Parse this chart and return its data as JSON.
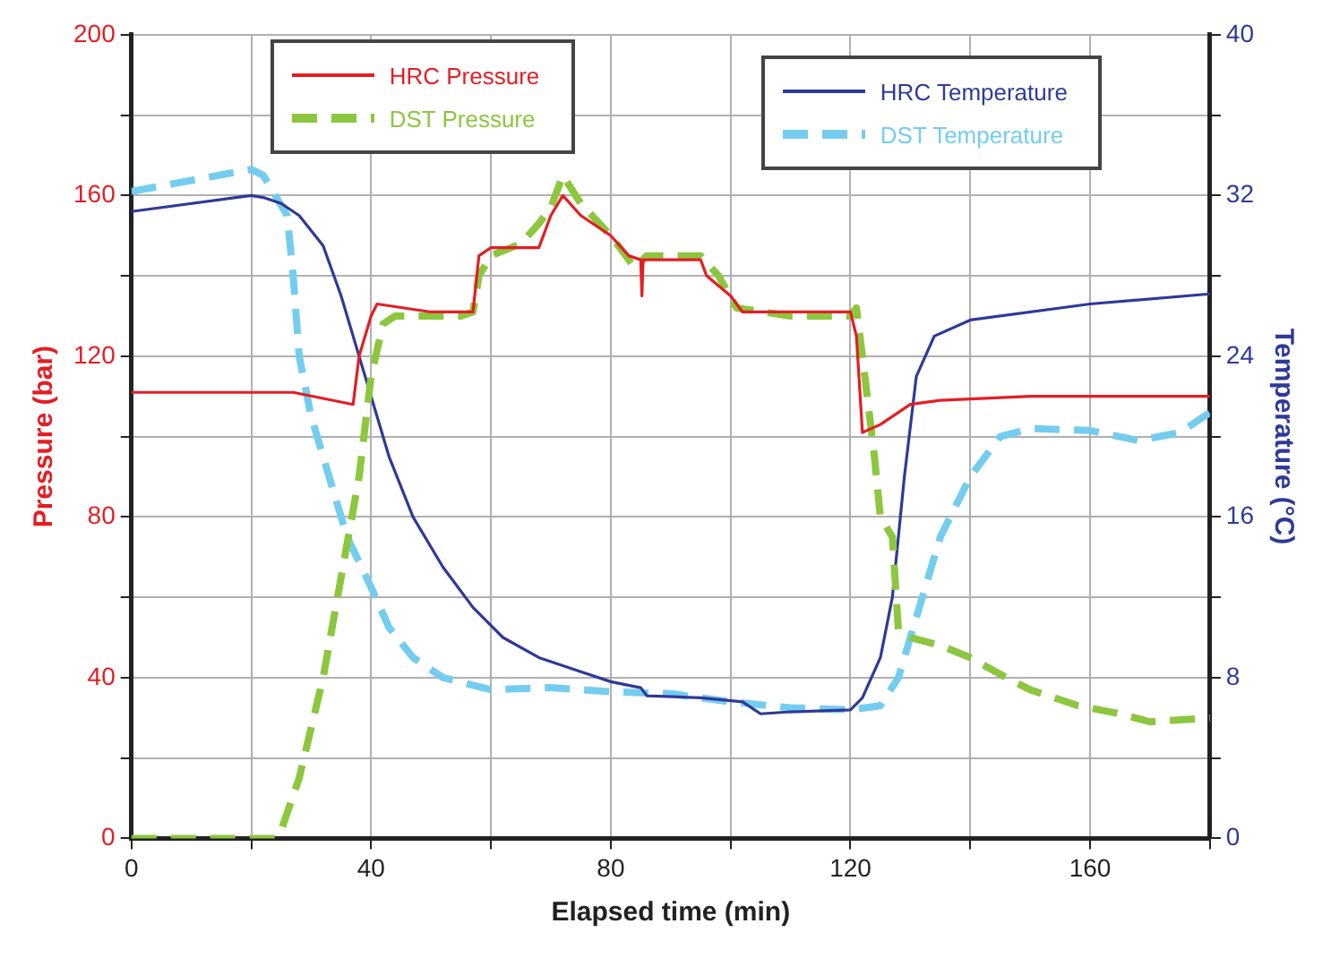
{
  "chart_data": {
    "type": "line",
    "xlabel": "Elapsed time (min)",
    "ylabel": "Pressure (bar)",
    "y2label": "Temperature (°C)",
    "xlim": [
      0,
      180
    ],
    "xticks": [
      0,
      {
        "value": 20,
        "label": null
      },
      40,
      {
        "value": 60,
        "label": null
      },
      80,
      {
        "value": 100,
        "label": null
      },
      120,
      {
        "value": 140,
        "label": null
      },
      160,
      {
        "value": 180,
        "label": null
      }
    ],
    "ylim": [
      0,
      200
    ],
    "yticks": [
      0,
      {
        "value": 20,
        "label": null
      },
      40,
      {
        "value": 60,
        "label": null
      },
      80,
      {
        "value": 100,
        "label": null
      },
      120,
      {
        "value": 140,
        "label": null
      },
      160,
      {
        "value": 180,
        "label": null
      },
      200
    ],
    "y2lim": [
      0,
      40
    ],
    "y2ticks": [
      0,
      {
        "value": 4,
        "label": null
      },
      8,
      {
        "value": 12,
        "label": null
      },
      16,
      {
        "value": 20,
        "label": null
      },
      24,
      {
        "value": 28,
        "label": null
      },
      32,
      {
        "value": 36,
        "label": null
      },
      40
    ],
    "grid": true,
    "legend": "top",
    "marker": "none",
    "series": [
      {
        "name": "HRC Pressure",
        "color": "#e31e24",
        "line_style": "solid",
        "x": [
          0,
          27,
          37,
          38,
          40,
          41,
          50,
          57,
          58,
          60,
          68,
          70,
          72,
          75,
          80,
          83,
          85,
          85.2,
          85.4,
          95,
          96,
          100,
          102,
          110,
          120,
          121,
          122,
          125,
          128,
          130,
          135,
          150,
          180
        ],
        "values": [
          111,
          111,
          108,
          120,
          130,
          133,
          131,
          131,
          145,
          147,
          147,
          155,
          160,
          155,
          150,
          145,
          144,
          135,
          144,
          144,
          140,
          135,
          131,
          131,
          131,
          125,
          101,
          103,
          106,
          108,
          109,
          110,
          110
        ]
      },
      {
        "name": "DST Pressure",
        "color": "#8dc63f",
        "line_style": "dashed",
        "x": [
          0,
          24,
          25,
          28,
          32,
          35,
          38,
          40,
          42,
          44,
          55,
          57,
          58,
          60,
          65,
          68,
          70,
          72,
          75,
          80,
          84,
          86,
          95,
          98,
          101,
          110,
          120,
          121,
          122,
          124,
          125,
          127,
          128,
          130,
          135,
          140,
          146,
          150,
          158,
          165,
          170,
          180
        ],
        "values": [
          0,
          0,
          2,
          15,
          40,
          65,
          90,
          115,
          128,
          130,
          130,
          131,
          140,
          145,
          148,
          153,
          157,
          165,
          158,
          150,
          142,
          145,
          145,
          140,
          132,
          130,
          130,
          132,
          120,
          95,
          80,
          75,
          52,
          50,
          48,
          45,
          40,
          37,
          33,
          31,
          29,
          30
        ]
      },
      {
        "name": "HRC Temperature",
        "color": "#2e3a97",
        "line_style": "solid",
        "axis": "y2",
        "x": [
          0,
          20,
          22,
          25,
          28,
          32,
          35,
          38,
          40,
          43,
          47,
          52,
          57,
          62,
          68,
          75,
          80,
          85,
          86,
          95,
          102,
          105,
          110,
          120,
          122,
          125,
          127,
          129,
          131,
          134,
          140,
          160,
          180
        ],
        "values": [
          31.2,
          32.0,
          31.9,
          31.6,
          31,
          29.5,
          27,
          24,
          22,
          19,
          16,
          13.5,
          11.5,
          10,
          9,
          8.3,
          7.8,
          7.5,
          7.1,
          7.0,
          6.8,
          6.2,
          6.3,
          6.4,
          7,
          9,
          12,
          18,
          23,
          25,
          25.8,
          26.6,
          27.1
        ]
      },
      {
        "name": "DST Temperature",
        "color": "#74cdef",
        "line_style": "dashed",
        "axis": "y2",
        "x": [
          0,
          20,
          22,
          24,
          26,
          27,
          28,
          30,
          33,
          36,
          40,
          43,
          47,
          52,
          60,
          70,
          80,
          90,
          100,
          110,
          120,
          125,
          128,
          131,
          135,
          140,
          145,
          150,
          160,
          168,
          175,
          180
        ],
        "values": [
          32.2,
          33.3,
          33,
          32,
          31,
          28,
          24,
          21,
          18,
          15,
          12.5,
          10.5,
          9,
          8,
          7.4,
          7.5,
          7.3,
          7.2,
          6.8,
          6.5,
          6.4,
          6.6,
          8,
          11,
          15,
          18,
          20,
          20.4,
          20.3,
          19.8,
          20.2,
          21.2
        ]
      }
    ]
  }
}
